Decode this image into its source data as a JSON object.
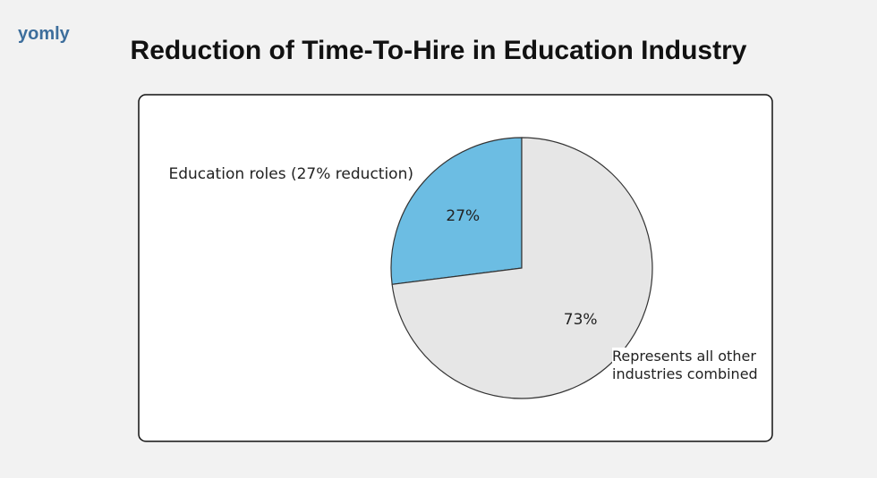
{
  "header": {
    "logo": "yomly"
  },
  "chart_data": {
    "type": "pie",
    "title": "Reduction of Time-To-Hire in Education Industry",
    "categories": [
      "Education roles (27% reduction)",
      "Represents all other industries combined"
    ],
    "values": [
      27,
      73
    ],
    "value_labels": [
      "27%",
      "73%"
    ],
    "colors": [
      "#6cbde3",
      "#e6e6e6"
    ]
  }
}
